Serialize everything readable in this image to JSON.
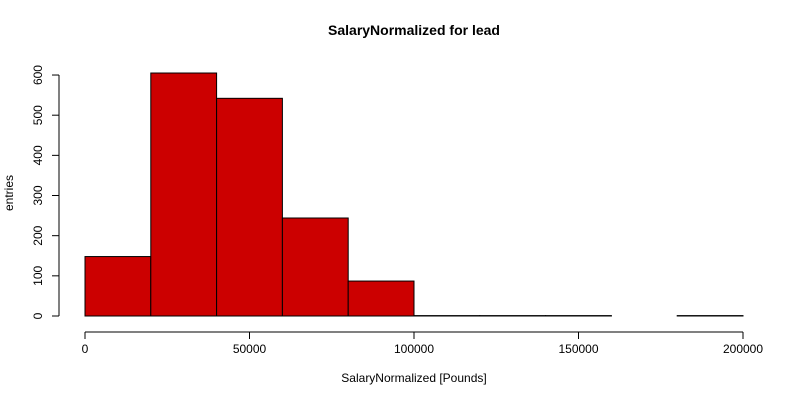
{
  "chart_data": {
    "type": "bar",
    "title": "SalaryNormalized for lead",
    "xlabel": "SalaryNormalized [Pounds]",
    "ylabel": "entries",
    "bins": [
      {
        "from": 0,
        "to": 20000,
        "value": 148
      },
      {
        "from": 20000,
        "to": 40000,
        "value": 605
      },
      {
        "from": 40000,
        "to": 60000,
        "value": 542
      },
      {
        "from": 60000,
        "to": 80000,
        "value": 244
      },
      {
        "from": 80000,
        "to": 100000,
        "value": 87
      },
      {
        "from": 100000,
        "to": 120000,
        "value": 1
      },
      {
        "from": 120000,
        "to": 140000,
        "value": 1
      },
      {
        "from": 140000,
        "to": 160000,
        "value": 1
      },
      {
        "from": 160000,
        "to": 180000,
        "value": 0
      },
      {
        "from": 180000,
        "to": 200000,
        "value": 1
      }
    ],
    "xlim": [
      0,
      200000
    ],
    "ylim": [
      0,
      615
    ],
    "xticks": [
      0,
      50000,
      100000,
      150000,
      200000
    ],
    "xtick_labels": [
      "0",
      "50000",
      "100000",
      "150000",
      "200000"
    ],
    "yticks": [
      0,
      100,
      200,
      300,
      400,
      500,
      600
    ],
    "ytick_labels": [
      "0",
      "100",
      "200",
      "300",
      "400",
      "500",
      "600"
    ],
    "bar_color": "#cc0000",
    "edge_color": "#000000",
    "grid": false,
    "legend": "none"
  }
}
